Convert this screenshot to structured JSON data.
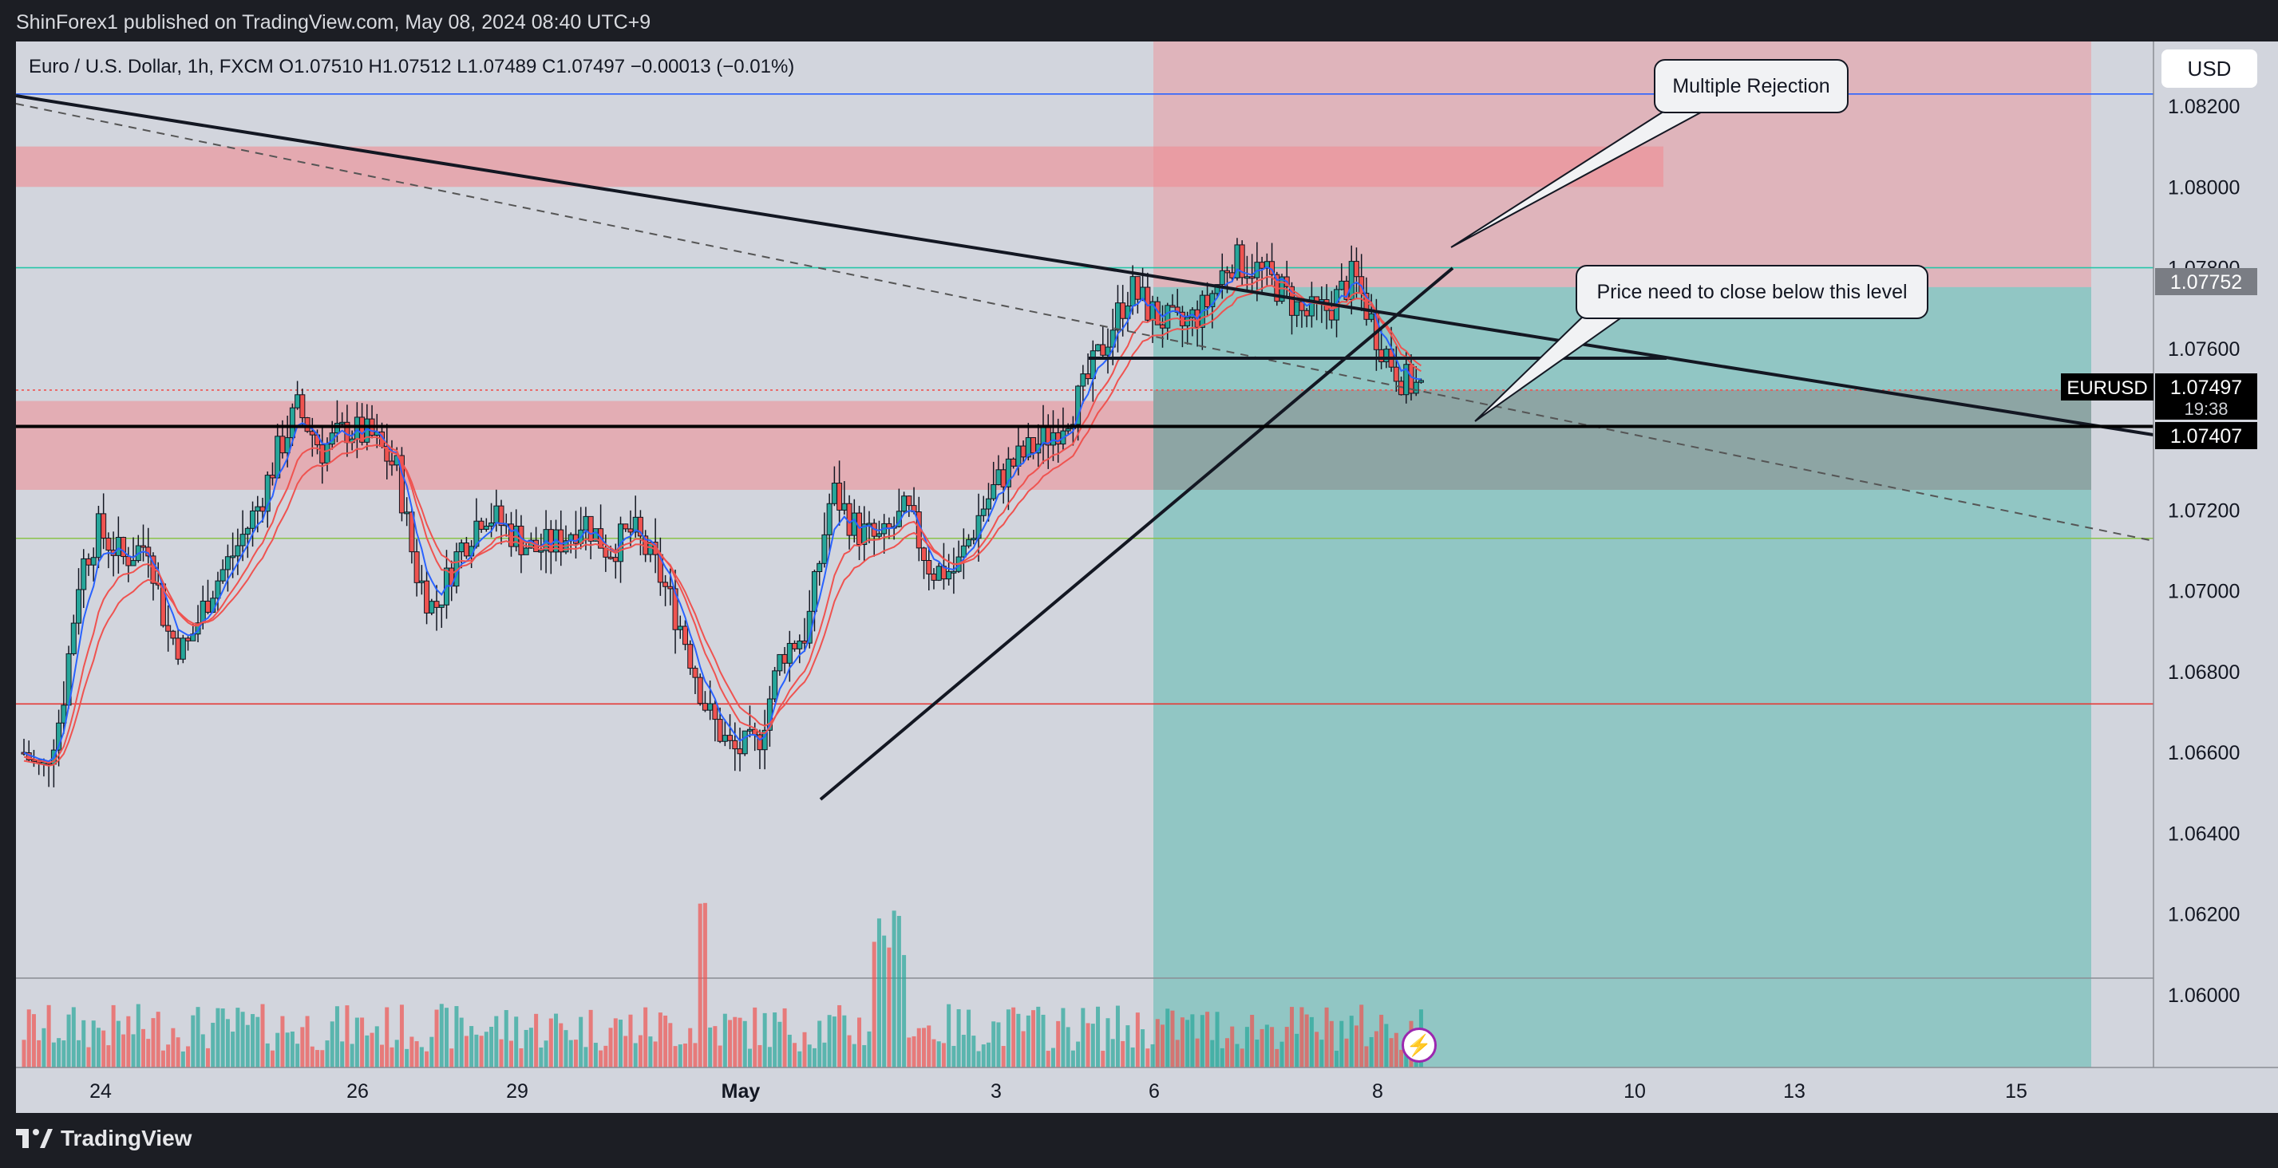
{
  "header": {
    "publisher_line": "ShinForex1 published on TradingView.com, May 08, 2024 08:40 UTC+9"
  },
  "legend": {
    "symbol_line": "Euro / U.S. Dollar, 1h, FXCM  O1.07510  H1.07512  L1.07489  C1.07497  −0.00013 (−0.01%)"
  },
  "currency_button": "USD",
  "footer": {
    "brand": "TradingView"
  },
  "annotations": {
    "callout_1": "Multiple Rejection",
    "callout_2": "Price need to close below this level"
  },
  "price_tags": {
    "symbol": "EURUSD",
    "last_price": "1.07497",
    "countdown": "19:38",
    "line_level": "1.07407",
    "upper_level": "1.07752"
  },
  "colors": {
    "background": "#d2d5dd",
    "frame": "#1c1e24",
    "up_candle": "#26a69a",
    "down_candle": "#ef5350",
    "stop_zone": "#f08c92",
    "target_zone": "#4fb7ac",
    "ema_fast": "#2962ff",
    "ema_slow": "#ef5350"
  },
  "chart_data": {
    "type": "candlestick",
    "symbol": "Euro / U.S. Dollar",
    "timeframe": "1h",
    "y_tick_labels": [
      "1.08200",
      "1.08000",
      "1.07800",
      "1.07600",
      "1.07200",
      "1.07000",
      "1.06800",
      "1.06600",
      "1.06400",
      "1.06200",
      "1.06000"
    ],
    "x_tick_labels": [
      "24",
      "26",
      "29",
      "May",
      "3",
      "6",
      "8",
      "10",
      "13",
      "15"
    ],
    "ylim": [
      1.0582,
      1.0836
    ],
    "price_path": [
      [
        0,
        1.066
      ],
      [
        30,
        1.0655
      ],
      [
        60,
        1.067
      ],
      [
        90,
        1.0705
      ],
      [
        120,
        1.0715
      ],
      [
        160,
        1.0708
      ],
      [
        200,
        1.0712
      ],
      [
        230,
        1.069
      ],
      [
        260,
        1.0685
      ],
      [
        300,
        1.07
      ],
      [
        340,
        1.071
      ],
      [
        380,
        1.0722
      ],
      [
        410,
        1.0735
      ],
      [
        440,
        1.0745
      ],
      [
        480,
        1.0735
      ],
      [
        520,
        1.074
      ],
      [
        560,
        1.0738
      ],
      [
        600,
        1.073
      ],
      [
        630,
        1.0705
      ],
      [
        660,
        1.0695
      ],
      [
        700,
        1.071
      ],
      [
        740,
        1.072
      ],
      [
        780,
        1.0715
      ],
      [
        820,
        1.071
      ],
      [
        860,
        1.0712
      ],
      [
        900,
        1.0718
      ],
      [
        940,
        1.071
      ],
      [
        980,
        1.0715
      ],
      [
        1020,
        1.0705
      ],
      [
        1060,
        1.069
      ],
      [
        1100,
        1.067
      ],
      [
        1140,
        1.066
      ],
      [
        1180,
        1.0662
      ],
      [
        1220,
        1.0685
      ],
      [
        1260,
        1.069
      ],
      [
        1300,
        1.0725
      ],
      [
        1340,
        1.0715
      ],
      [
        1380,
        1.0712
      ],
      [
        1420,
        1.072
      ],
      [
        1460,
        1.0705
      ],
      [
        1500,
        1.0705
      ],
      [
        1540,
        1.072
      ],
      [
        1580,
        1.073
      ],
      [
        1620,
        1.0735
      ],
      [
        1660,
        1.074
      ],
      [
        1700,
        1.0748
      ],
      [
        1740,
        1.0762
      ],
      [
        1780,
        1.0775
      ],
      [
        1820,
        1.0768
      ],
      [
        1860,
        1.0765
      ],
      [
        1900,
        1.077
      ],
      [
        1940,
        1.0782
      ],
      [
        1980,
        1.078
      ],
      [
        2020,
        1.0775
      ],
      [
        2060,
        1.0768
      ],
      [
        2100,
        1.077
      ],
      [
        2140,
        1.0778
      ],
      [
        2180,
        1.0762
      ],
      [
        2220,
        1.0752
      ],
      [
        2250,
        1.075
      ]
    ],
    "horizontal_levels": [
      {
        "price": 1.0823,
        "color": "#2962ff"
      },
      {
        "price": 1.078,
        "color": "#26c6a8"
      },
      {
        "price": 1.07497,
        "color": "#ef5350"
      },
      {
        "price": 1.07407,
        "color": "#000000"
      },
      {
        "price": 1.0713,
        "color": "#8bc34a"
      },
      {
        "price": 1.0672,
        "color": "#e53935"
      }
    ],
    "zones": [
      {
        "kind": "resistance",
        "from": 1.08,
        "to": 1.081
      },
      {
        "kind": "support",
        "from": 1.0725,
        "to": 1.0747
      },
      {
        "kind": "stop",
        "from": 1.07752,
        "to": 1.0836
      },
      {
        "kind": "target",
        "from": 1.0582,
        "to": 1.07752
      }
    ]
  }
}
